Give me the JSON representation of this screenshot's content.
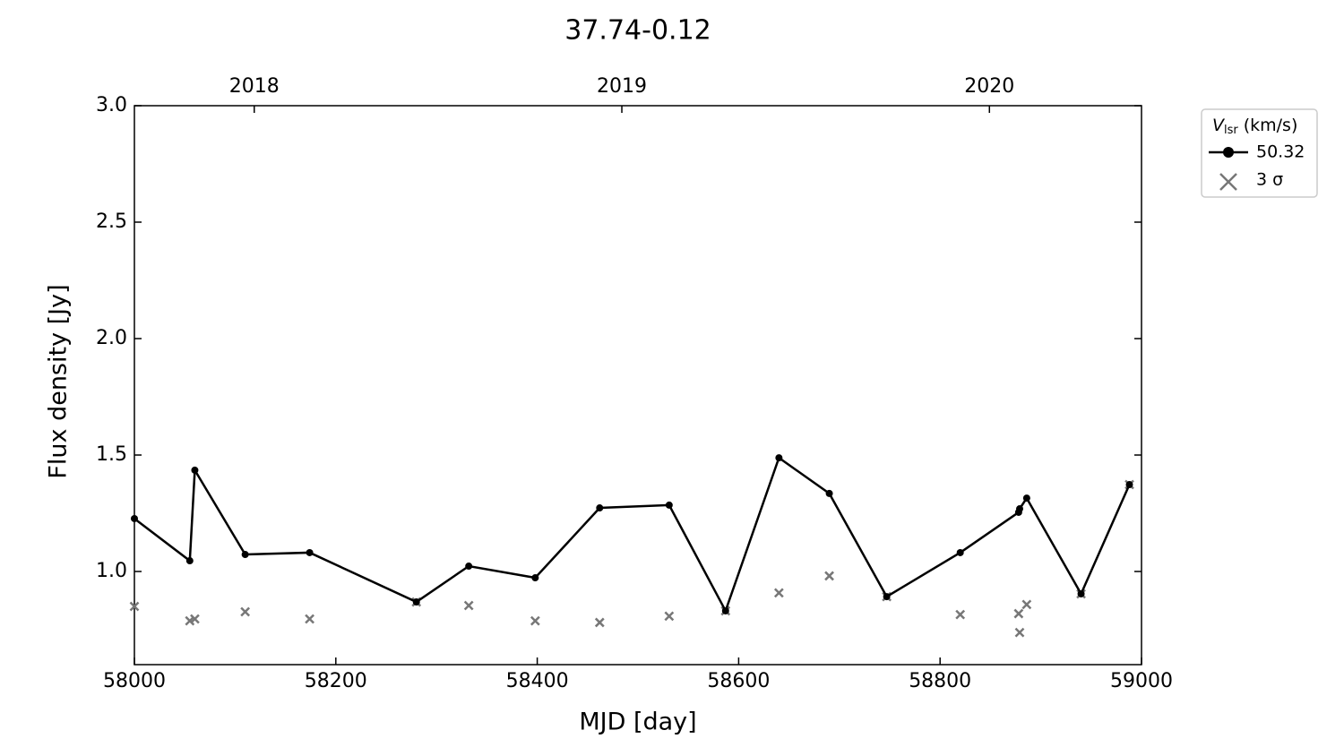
{
  "chart_data": {
    "type": "line",
    "title": "37.74-0.12",
    "xlabel": "MJD [day]",
    "ylabel": "Flux density [Jy]",
    "xlim": [
      58000,
      59000
    ],
    "xticks": [
      58000,
      58200,
      58400,
      58600,
      58800,
      59000
    ],
    "ylim": [
      0.6,
      3.0
    ],
    "yticks": [
      {
        "value": 1.0,
        "label": "1.0"
      },
      1.5,
      {
        "value": 2.0,
        "label": "2.0"
      },
      2.5,
      {
        "value": 3.0,
        "label": "3.0"
      }
    ],
    "x2ticks": [
      {
        "value": 58119,
        "label": "2018"
      },
      {
        "value": 58484,
        "label": "2019"
      },
      {
        "value": 58849,
        "label": "2020"
      }
    ],
    "legend_title": {
      "symbol": "V",
      "subscript": "lsr",
      "unit": "(km/s)"
    },
    "legend_position": "outside upper right",
    "x": [
      58000,
      58055,
      58060,
      58110,
      58174,
      58280,
      58332,
      58398,
      58462,
      58531,
      58587,
      58640,
      58690,
      58747,
      58820,
      58878,
      58879,
      58886,
      58940,
      58988
    ],
    "series": [
      {
        "name": "50.32",
        "color": "#000000",
        "marker": "circle",
        "values": [
          1.227,
          1.046,
          1.435,
          1.073,
          1.081,
          0.869,
          1.023,
          0.973,
          1.273,
          1.285,
          0.831,
          1.488,
          1.335,
          0.892,
          1.081,
          1.254,
          1.269,
          1.315,
          0.904,
          1.373
        ]
      },
      {
        "name": "3 σ",
        "color": "#777777",
        "marker": "x",
        "values": [
          0.85,
          0.788,
          0.796,
          0.827,
          0.796,
          0.869,
          0.854,
          0.788,
          0.781,
          0.808,
          0.831,
          0.908,
          0.981,
          0.892,
          0.815,
          0.819,
          0.738,
          0.858,
          0.904,
          1.373
        ]
      }
    ]
  }
}
